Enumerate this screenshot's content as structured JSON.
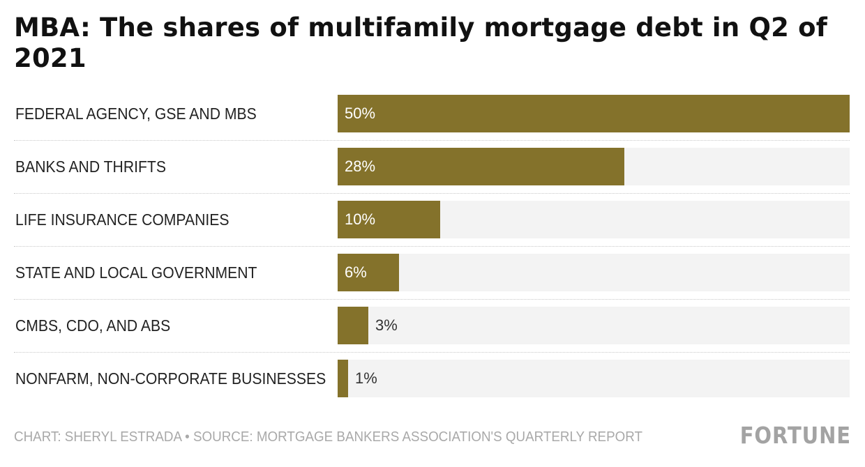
{
  "chart_data": {
    "type": "bar",
    "orientation": "horizontal",
    "title": "MBA: The shares of multifamily mortgage debt in Q2 of 2021",
    "categories": [
      "FEDERAL AGENCY, GSE AND MBS",
      "BANKS AND THRIFTS",
      "LIFE INSURANCE COMPANIES",
      "STATE AND LOCAL GOVERNMENT",
      "CMBS, CDO, AND ABS",
      "NONFARM, NON-CORPORATE BUSINESSES"
    ],
    "values": [
      50,
      28,
      10,
      6,
      3,
      1
    ],
    "value_labels": [
      "50%",
      "28%",
      "10%",
      "6%",
      "3%",
      "1%"
    ],
    "xlim": [
      0,
      50
    ],
    "bar_color": "#84722b",
    "track_color": "#f3f3f3"
  },
  "footer": {
    "credit": "CHART: SHERYL ESTRADA • SOURCE: MORTGAGE BANKERS ASSOCIATION'S QUARTERLY REPORT",
    "logo": "FORTUNE"
  }
}
